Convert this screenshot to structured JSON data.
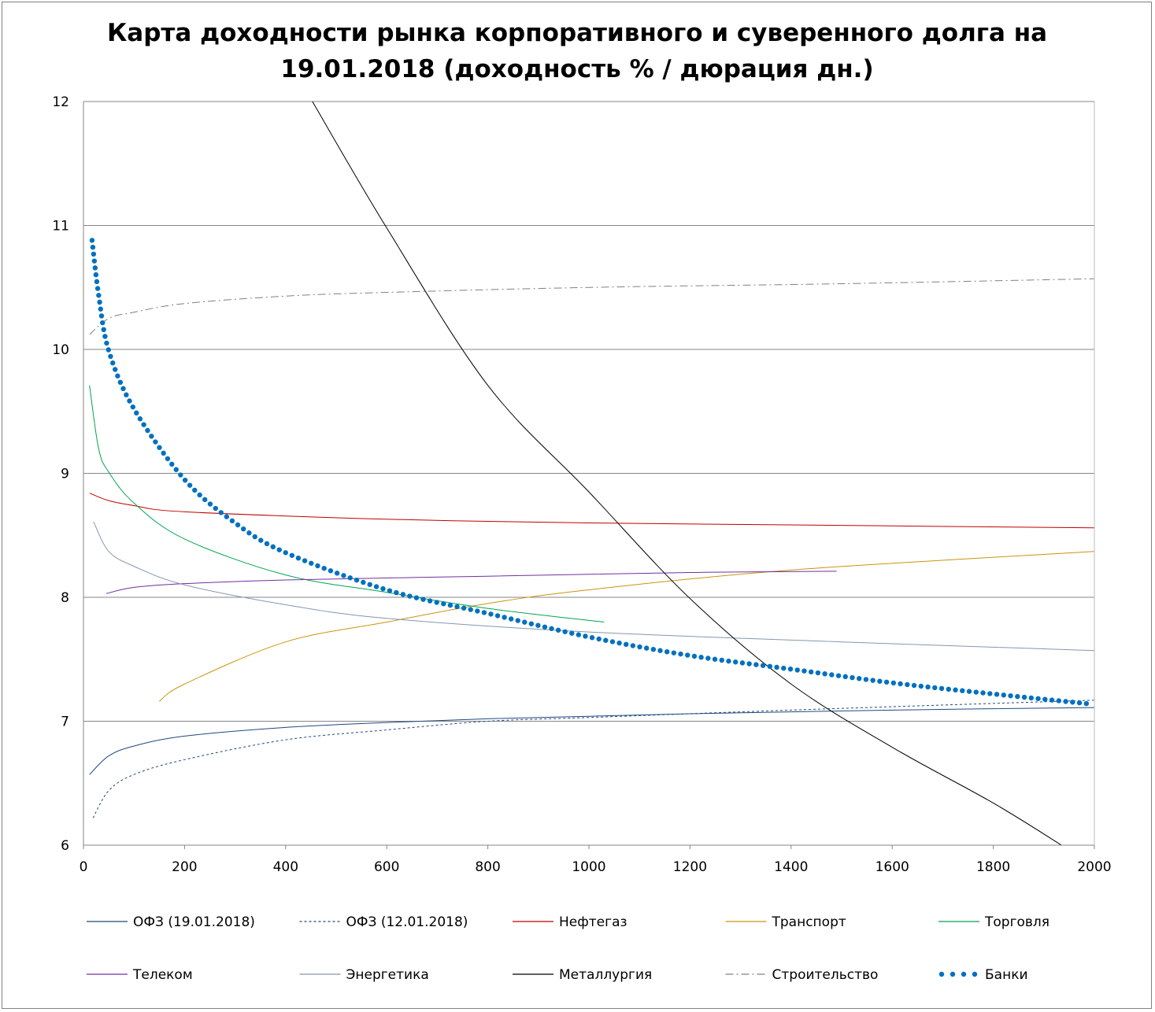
{
  "chart_data": {
    "type": "line",
    "title_lines": [
      "Карта доходности рынка корпоративного и суверенного долга на",
      "19.01.2018 (доходность % / дюрация дн.)"
    ],
    "xlabel": "",
    "ylabel": "",
    "xlim": [
      0,
      2000
    ],
    "ylim": [
      6,
      12
    ],
    "xticks": [
      0,
      200,
      400,
      600,
      800,
      1000,
      1200,
      1400,
      1600,
      1800,
      2000
    ],
    "yticks": [
      6,
      7,
      8,
      9,
      10,
      11,
      12
    ],
    "grid": "horizontal",
    "legend_position": "bottom",
    "series": [
      {
        "name": "ОФЗ (19.01.2018)",
        "color": "#1f497d",
        "style": "solid",
        "points": [
          [
            12,
            6.57
          ],
          [
            50,
            6.72
          ],
          [
            100,
            6.8
          ],
          [
            200,
            6.88
          ],
          [
            400,
            6.95
          ],
          [
            600,
            6.99
          ],
          [
            800,
            7.02
          ],
          [
            1000,
            7.04
          ],
          [
            1200,
            7.06
          ],
          [
            1600,
            7.09
          ],
          [
            2000,
            7.11
          ]
        ]
      },
      {
        "name": "ОФЗ (12.01.2018)",
        "color": "#1f497d",
        "style": "dotted",
        "points": [
          [
            19,
            6.22
          ],
          [
            50,
            6.44
          ],
          [
            100,
            6.57
          ],
          [
            200,
            6.69
          ],
          [
            400,
            6.85
          ],
          [
            600,
            6.93
          ],
          [
            800,
            7.0
          ],
          [
            1000,
            7.03
          ],
          [
            1400,
            7.09
          ],
          [
            2000,
            7.17
          ]
        ]
      },
      {
        "name": "Нефтегаз",
        "color": "#c00000",
        "style": "solid",
        "points": [
          [
            12,
            8.84
          ],
          [
            50,
            8.78
          ],
          [
            100,
            8.74
          ],
          [
            200,
            8.69
          ],
          [
            600,
            8.63
          ],
          [
            1000,
            8.6
          ],
          [
            1500,
            8.58
          ],
          [
            2000,
            8.56
          ]
        ]
      },
      {
        "name": "Транспорт",
        "color": "#c9950e",
        "style": "solid",
        "points": [
          [
            150,
            7.16
          ],
          [
            200,
            7.3
          ],
          [
            400,
            7.64
          ],
          [
            600,
            7.8
          ],
          [
            800,
            7.95
          ],
          [
            1000,
            8.06
          ],
          [
            1400,
            8.22
          ],
          [
            2000,
            8.37
          ]
        ]
      },
      {
        "name": "Торговля",
        "color": "#00a550",
        "style": "solid",
        "points": [
          [
            12,
            9.71
          ],
          [
            30,
            9.2
          ],
          [
            50,
            9.01
          ],
          [
            100,
            8.76
          ],
          [
            200,
            8.47
          ],
          [
            400,
            8.18
          ],
          [
            600,
            8.04
          ],
          [
            800,
            7.91
          ],
          [
            1030,
            7.8
          ]
        ]
      },
      {
        "name": "Телеком",
        "color": "#7030a0",
        "style": "solid",
        "points": [
          [
            45,
            8.03
          ],
          [
            100,
            8.08
          ],
          [
            200,
            8.11
          ],
          [
            400,
            8.14
          ],
          [
            800,
            8.17
          ],
          [
            1200,
            8.2
          ],
          [
            1490,
            8.21
          ]
        ]
      },
      {
        "name": "Энергетика",
        "color": "#8496b0",
        "style": "solid",
        "points": [
          [
            20,
            8.61
          ],
          [
            50,
            8.37
          ],
          [
            100,
            8.25
          ],
          [
            200,
            8.1
          ],
          [
            400,
            7.94
          ],
          [
            600,
            7.83
          ],
          [
            1000,
            7.72
          ],
          [
            1500,
            7.64
          ],
          [
            2000,
            7.57
          ]
        ]
      },
      {
        "name": "Металлургия",
        "color": "#000000",
        "style": "solid",
        "points": [
          [
            453,
            12.0
          ],
          [
            600,
            10.98
          ],
          [
            800,
            9.71
          ],
          [
            1000,
            8.85
          ],
          [
            1200,
            7.99
          ],
          [
            1400,
            7.3
          ],
          [
            1600,
            6.79
          ],
          [
            1800,
            6.34
          ],
          [
            1935,
            6.0
          ]
        ]
      },
      {
        "name": "Строительство",
        "color": "#808080",
        "style": "dashdot",
        "points": [
          [
            12,
            10.12
          ],
          [
            50,
            10.25
          ],
          [
            100,
            10.3
          ],
          [
            200,
            10.37
          ],
          [
            400,
            10.43
          ],
          [
            600,
            10.46
          ],
          [
            1000,
            10.5
          ],
          [
            1500,
            10.53
          ],
          [
            2000,
            10.57
          ]
        ]
      },
      {
        "name": "Банки",
        "color": "#0070c0",
        "style": "dots",
        "points": [
          [
            17,
            10.88
          ],
          [
            30,
            10.44
          ],
          [
            50,
            9.99
          ],
          [
            100,
            9.52
          ],
          [
            200,
            8.95
          ],
          [
            300,
            8.6
          ],
          [
            400,
            8.36
          ],
          [
            600,
            8.06
          ],
          [
            800,
            7.87
          ],
          [
            1000,
            7.68
          ],
          [
            1200,
            7.53
          ],
          [
            1400,
            7.42
          ],
          [
            1600,
            7.31
          ],
          [
            1800,
            7.22
          ],
          [
            1990,
            7.14
          ]
        ]
      }
    ]
  }
}
